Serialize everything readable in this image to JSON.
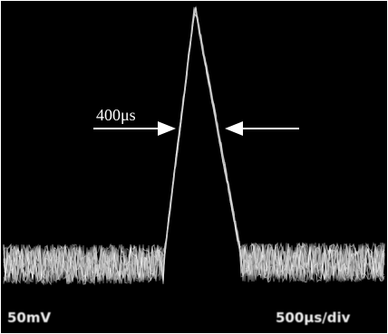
{
  "annotation": "400μs",
  "labels": {
    "volts_per_div": "50mV",
    "time_per_div": "500μs/div"
  }
}
